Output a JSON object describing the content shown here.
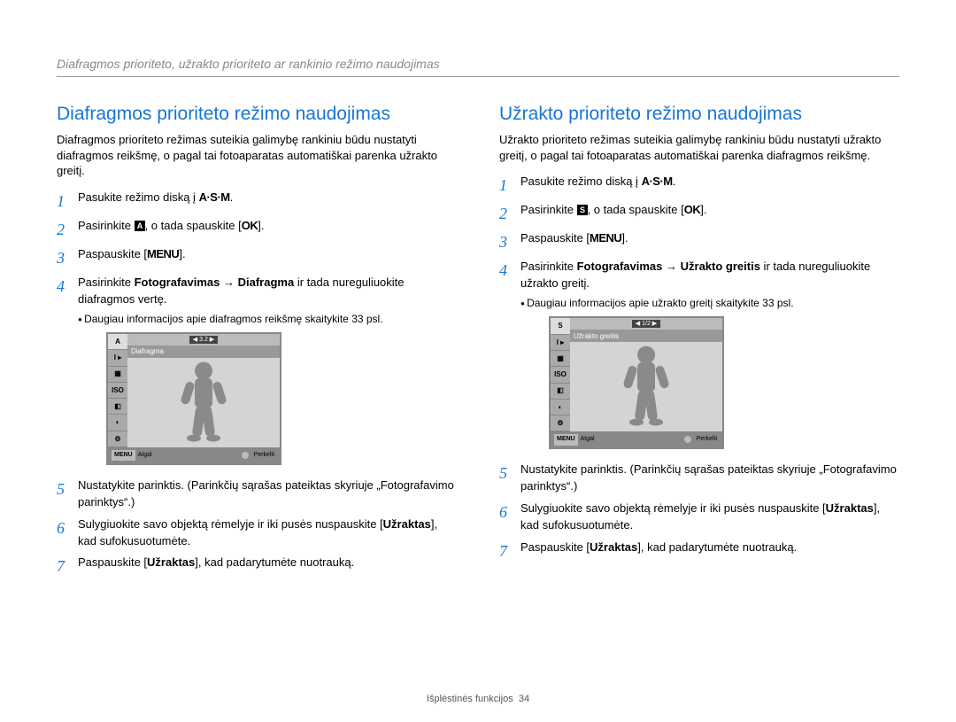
{
  "header": "Diafragmos prioriteto, užrakto prioriteto ar rankinio režimo naudojimas",
  "footer_label": "Išplėstinės funkcijos",
  "footer_page": "34",
  "colors": {
    "heading": "#1a75d1",
    "header_text": "#888888",
    "rule": "#999999",
    "screen_border": "#888888",
    "screen_sidebar": "#aaaaaa",
    "screen_bg": "#d4d4d4"
  },
  "left": {
    "title": "Diafragmos prioriteto režimo naudojimas",
    "intro": "Diafragmos prioriteto režimas suteikia galimybę rankiniu būdu nustatyti diafragmos reikšmę, o pagal tai fotoaparatas automatiškai parenka užrakto greitį.",
    "steps": [
      {
        "n": "1",
        "html": "Pasukite režimo diską į <span class=\"inline-label\">A·S·M</span>."
      },
      {
        "n": "2",
        "html": "Pasirinkite <span class=\"icon-box\"><svg width=\"12\" height=\"12\"><rect x=\"0\" y=\"0\" width=\"12\" height=\"12\" fill=\"#000\"/><text x=\"6\" y=\"9\" font-size=\"9\" fill=\"#fff\" text-anchor=\"middle\" font-weight=\"bold\">A</text></svg></span>, o tada spauskite [<span class=\"inline-label\">OK</span>]."
      },
      {
        "n": "3",
        "html": "Paspauskite [<span class=\"inline-label\">MENU</span>]."
      },
      {
        "n": "4",
        "html": "Pasirinkite <b>Fotografavimas</b> → <b>Diafragma</b> ir tada nureguliuokite diafragmos vertę.",
        "sub": "Daugiau informacijos apie diafragmos reikšmę skaitykite 33 psl.",
        "screen": true
      },
      {
        "n": "5",
        "html": "Nustatykite parinktis. (Parinkčių sąrašas pateiktas skyriuje „Fotografavimo parinktys“.)"
      },
      {
        "n": "6",
        "html": "Sulygiuokite savo objektą rėmelyje ir iki pusės nuspauskite [<b>Užraktas</b>], kad sufokusuotumėte."
      },
      {
        "n": "7",
        "html": "Paspauskite [<b>Užraktas</b>], kad padarytumėte nuotrauką."
      }
    ],
    "screen": {
      "mode_letter": "A",
      "chip": "3.2",
      "label": "Diafragma",
      "back": "Atgal",
      "move": "Perkelti",
      "menu": "MENU"
    }
  },
  "right": {
    "title": "Užrakto prioriteto režimo naudojimas",
    "intro": "Užrakto prioriteto režimas suteikia galimybę rankiniu būdu nustatyti užrakto greitį, o pagal tai fotoaparatas automatiškai parenka diafragmos reikšmę.",
    "steps": [
      {
        "n": "1",
        "html": "Pasukite režimo diską į <span class=\"inline-label\">A·S·M</span>."
      },
      {
        "n": "2",
        "html": "Pasirinkite <span class=\"icon-box\"><svg width=\"12\" height=\"12\"><rect x=\"0\" y=\"0\" width=\"12\" height=\"12\" fill=\"#000\"/><text x=\"6\" y=\"9\" font-size=\"9\" fill=\"#fff\" text-anchor=\"middle\" font-weight=\"bold\">S</text></svg></span>, o tada spauskite [<span class=\"inline-label\">OK</span>]."
      },
      {
        "n": "3",
        "html": "Paspauskite [<span class=\"inline-label\">MENU</span>]."
      },
      {
        "n": "4",
        "html": "Pasirinkite <b>Fotografavimas</b> → <b>Užrakto greitis</b> ir tada nureguliuokite užrakto greitį.",
        "sub": "Daugiau informacijos apie užrakto greitį skaitykite 33 psl.",
        "screen": true
      },
      {
        "n": "5",
        "html": "Nustatykite parinktis. (Parinkčių sąrašas pateiktas skyriuje „Fotografavimo parinktys“.)"
      },
      {
        "n": "6",
        "html": "Sulygiuokite savo objektą rėmelyje ir iki pusės nuspauskite [<b>Užraktas</b>], kad sufokusuotumėte."
      },
      {
        "n": "7",
        "html": "Paspauskite [<b>Užraktas</b>], kad padarytumėte nuotrauką."
      }
    ],
    "screen": {
      "mode_letter": "S",
      "chip": "1/2",
      "label": "Užrakto greitis",
      "back": "Atgal",
      "move": "Perkelti",
      "menu": "MENU"
    }
  }
}
